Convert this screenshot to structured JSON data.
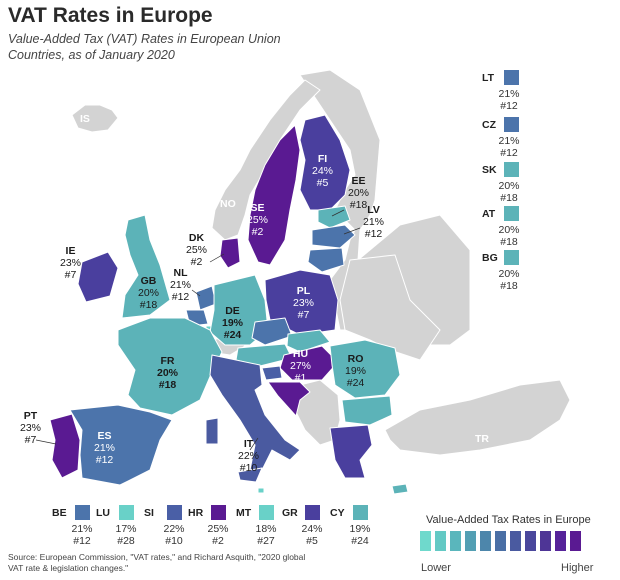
{
  "title": "VAT Rates in Europe",
  "subtitle": "Value-Added Tax (VAT) Rates in European Union Countries, as of January 2020",
  "colors": {
    "nonEU": "#d3d3d3",
    "rank_5": "#7744b2",
    "rank_purple": "#5a1a92",
    "rank_indigo": "#4a3f9e",
    "blue": "#4c74ab",
    "teal": "#5cb3b8",
    "mint": "#69d1c8",
    "border": "#ffffff"
  },
  "countries": [
    {
      "code": "IS",
      "rate": "",
      "rank": "",
      "eu": false
    },
    {
      "code": "NO",
      "rate": "",
      "rank": "",
      "eu": false
    },
    {
      "code": "TR",
      "rate": "",
      "rank": "",
      "eu": false
    },
    {
      "code": "FI",
      "rate": "24%",
      "rank": "#5"
    },
    {
      "code": "SE",
      "rate": "25%",
      "rank": "#2"
    },
    {
      "code": "EE",
      "rate": "20%",
      "rank": "#18"
    },
    {
      "code": "LV",
      "rate": "21%",
      "rank": "#12"
    },
    {
      "code": "DK",
      "rate": "25%",
      "rank": "#2"
    },
    {
      "code": "IE",
      "rate": "23%",
      "rank": "#7"
    },
    {
      "code": "GB",
      "rate": "20%",
      "rank": "#18"
    },
    {
      "code": "NL",
      "rate": "21%",
      "rank": "#12"
    },
    {
      "code": "DE",
      "rate": "19%",
      "rank": "#24"
    },
    {
      "code": "PL",
      "rate": "23%",
      "rank": "#7"
    },
    {
      "code": "FR",
      "rate": "20%",
      "rank": "#18"
    },
    {
      "code": "HU",
      "rate": "27%",
      "rank": "#1"
    },
    {
      "code": "RO",
      "rate": "19%",
      "rank": "#24"
    },
    {
      "code": "PT",
      "rate": "23%",
      "rank": "#7"
    },
    {
      "code": "ES",
      "rate": "21%",
      "rank": "#12"
    },
    {
      "code": "IT",
      "rate": "22%",
      "rank": "#10"
    }
  ],
  "side_list": [
    {
      "code": "LT",
      "rate": "21%",
      "rank": "#12",
      "color": "#4c74ab"
    },
    {
      "code": "CZ",
      "rate": "21%",
      "rank": "#12",
      "color": "#4c74ab"
    },
    {
      "code": "SK",
      "rate": "20%",
      "rank": "#18",
      "color": "#5cb3b8"
    },
    {
      "code": "AT",
      "rate": "20%",
      "rank": "#18",
      "color": "#5cb3b8"
    },
    {
      "code": "BG",
      "rate": "20%",
      "rank": "#18",
      "color": "#5cb3b8"
    }
  ],
  "bottom_list": [
    {
      "code": "BE",
      "rate": "21%",
      "rank": "#12",
      "color": "#4c74ab"
    },
    {
      "code": "LU",
      "rate": "17%",
      "rank": "#28",
      "color": "#69d1c8"
    },
    {
      "code": "SI",
      "rate": "22%",
      "rank": "#10",
      "color": "#4a5fa6"
    },
    {
      "code": "HR",
      "rate": "25%",
      "rank": "#2",
      "color": "#5a1a92"
    },
    {
      "code": "MT",
      "rate": "18%",
      "rank": "#27",
      "color": "#69d1c8"
    },
    {
      "code": "GR",
      "rate": "24%",
      "rank": "#5",
      "color": "#4a3f9e"
    },
    {
      "code": "CY",
      "rate": "19%",
      "rank": "#24",
      "color": "#5cb3b8"
    }
  ],
  "legend": {
    "title": "Value-Added Tax Rates in Europe",
    "low": "Lower",
    "high": "Higher",
    "colors": [
      "#6fd9cc",
      "#63c9c4",
      "#5ab6bc",
      "#539fb3",
      "#4d86ab",
      "#4a6fa5",
      "#4a5aa0",
      "#4a479c",
      "#4e3596",
      "#56239a",
      "#5a1a92"
    ]
  },
  "source": "Source: European Commission, \"VAT rates,\" and Richard Asquith, \"2020 global VAT rate & legislation changes.\""
}
